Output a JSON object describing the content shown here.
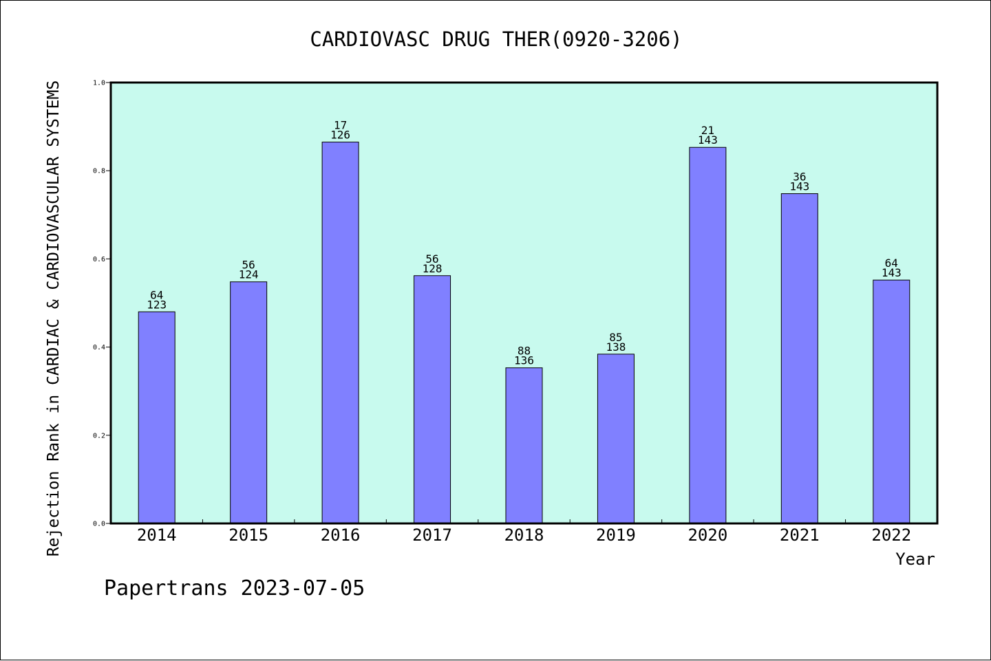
{
  "chart_data": {
    "type": "bar",
    "title": "CARDIOVASC DRUG THER(0920-3206)",
    "xlabel": "Year",
    "ylabel": "Rejection Rank in CARDIAC & CARDIOVASCULAR SYSTEMS",
    "footer": "Papertrans 2023-07-05",
    "categories": [
      "2014",
      "2015",
      "2016",
      "2017",
      "2018",
      "2019",
      "2020",
      "2021",
      "2022"
    ],
    "values": [
      0.48,
      0.548,
      0.865,
      0.562,
      0.353,
      0.384,
      0.853,
      0.748,
      0.552
    ],
    "rank": [
      "64",
      "56",
      "17",
      "56",
      "88",
      "85",
      "21",
      "36",
      "64"
    ],
    "total": [
      "123",
      "124",
      "126",
      "128",
      "136",
      "138",
      "143",
      "143",
      "143"
    ],
    "ylim": [
      0,
      1.0
    ],
    "yticks": [
      "0.0",
      "0.2",
      "0.4",
      "0.6",
      "0.8",
      "1.0"
    ],
    "grid": false,
    "colors": {
      "plot_background": "#c8faee",
      "bar_fill": "#8080ff",
      "bar_stroke": "#000000"
    }
  }
}
